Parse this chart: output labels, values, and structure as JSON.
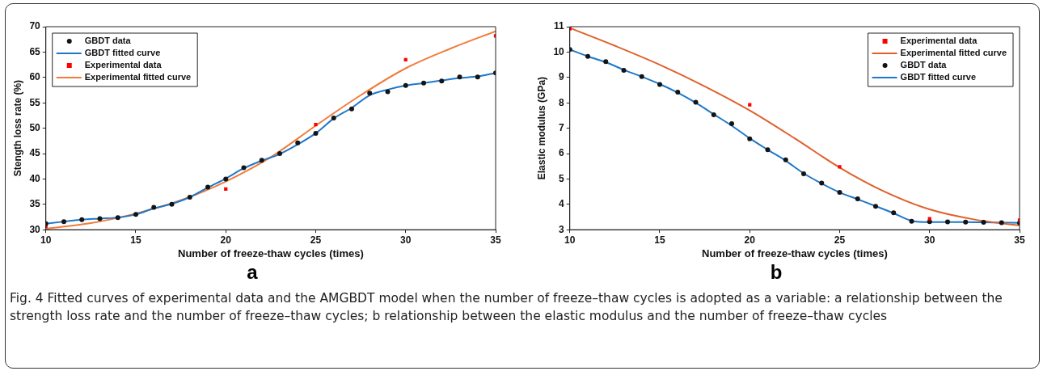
{
  "chart_data": [
    {
      "type": "line",
      "title": "a",
      "xlabel": "Number of freeze-thaw cycles (times)",
      "ylabel": "Stength loss rate (%)",
      "xlim": [
        10,
        35
      ],
      "xticks": [
        10,
        15,
        20,
        25,
        30,
        35
      ],
      "ylim": [
        30,
        70
      ],
      "yticks": [
        30,
        35,
        40,
        45,
        50,
        55,
        60,
        65,
        70
      ],
      "grid": false,
      "legend": "top left",
      "annotations": [
        "Fig. 4  Fitted curves of experimental data and the AMGBDT model when the number of freeze–thaw cycles is adopted as a variable: a relationship between the strength loss rate and the number of freeze–thaw cycles; b relationship between the elastic modulus and the number of freeze–thaw cycles"
      ],
      "series": [
        {
          "name": "GBDT data",
          "type": "scatter",
          "marker": "circle",
          "color": "#141414",
          "x": [
            10,
            11,
            12,
            13,
            14,
            15,
            16,
            17,
            18,
            19,
            20,
            21,
            22,
            23,
            24,
            25,
            26,
            27,
            28,
            29,
            30,
            31,
            32,
            33,
            34,
            35
          ],
          "values": [
            31.2,
            31.6,
            32.0,
            32.2,
            32.4,
            33.0,
            34.4,
            35.0,
            36.4,
            38.4,
            40.0,
            42.2,
            43.7,
            45.0,
            47.1,
            49.0,
            52.0,
            53.8,
            56.9,
            57.2,
            58.4,
            58.9,
            59.3,
            60.1,
            60.1,
            60.9
          ]
        },
        {
          "name": "GBDT fitted curve",
          "marker": "none",
          "line_style": "solid",
          "color": "#1f77c8",
          "x": [
            10,
            11,
            12,
            13,
            14,
            15,
            16,
            17,
            18,
            19,
            20,
            21,
            22,
            23,
            24,
            25,
            26,
            27,
            28,
            29,
            30,
            31,
            32,
            33,
            34,
            35
          ],
          "values": [
            31.2,
            31.6,
            32.0,
            32.2,
            32.4,
            33.0,
            34.2,
            35.1,
            36.4,
            38.3,
            40.1,
            42.1,
            43.6,
            44.9,
            46.8,
            49.0,
            51.9,
            54.0,
            56.5,
            57.6,
            58.4,
            58.9,
            59.4,
            59.9,
            60.2,
            60.9
          ]
        },
        {
          "name": "Experimental data",
          "type": "scatter",
          "marker": "square",
          "color": "#ff0000",
          "x": [
            10,
            20,
            25,
            30,
            35
          ],
          "values": [
            30.7,
            38.0,
            50.7,
            63.5,
            68.2
          ]
        },
        {
          "name": "Experimental fitted curve",
          "marker": "none",
          "line_style": "solid",
          "color": "#f07c3c",
          "x": [
            10,
            12.5,
            15,
            17.5,
            20,
            22.5,
            25,
            27.5,
            30,
            32.5,
            35
          ],
          "values": [
            30.2,
            31.3,
            33.2,
            35.8,
            39.5,
            44.3,
            50.5,
            56.5,
            61.8,
            65.7,
            69.1
          ]
        }
      ]
    },
    {
      "type": "line",
      "title": "b",
      "xlabel": "Number of freeze-thaw cycles (times)",
      "ylabel": "Elastic modulus (GPa)",
      "xlim": [
        10,
        35
      ],
      "xticks": [
        10,
        15,
        20,
        25,
        30,
        35
      ],
      "ylim": [
        3,
        11
      ],
      "yticks": [
        3,
        4,
        5,
        6,
        7,
        8,
        9,
        10,
        11
      ],
      "grid": false,
      "legend": "top right",
      "series": [
        {
          "name": "Experimental data",
          "type": "scatter",
          "marker": "square",
          "color": "#ff0000",
          "x": [
            10,
            20,
            25,
            30,
            35
          ],
          "values": [
            10.92,
            7.92,
            5.48,
            3.43,
            3.38
          ]
        },
        {
          "name": "Experimental fitted curve",
          "marker": "none",
          "line_style": "solid",
          "color": "#e0602c",
          "x": [
            10,
            12.5,
            15,
            17.5,
            20,
            22.5,
            25,
            27.5,
            30,
            32.5,
            35
          ],
          "values": [
            10.95,
            10.25,
            9.5,
            8.65,
            7.7,
            6.6,
            5.45,
            4.5,
            3.8,
            3.4,
            3.17
          ]
        },
        {
          "name": "GBDT data",
          "type": "scatter",
          "marker": "circle",
          "color": "#141414",
          "x": [
            10,
            11,
            12,
            13,
            14,
            15,
            16,
            17,
            18,
            19,
            20,
            21,
            22,
            23,
            24,
            25,
            26,
            27,
            28,
            29,
            30,
            31,
            32,
            33,
            34,
            35
          ],
          "values": [
            10.1,
            9.83,
            9.62,
            9.28,
            9.03,
            8.72,
            8.42,
            8.02,
            7.53,
            7.18,
            6.58,
            6.15,
            5.75,
            5.2,
            4.84,
            4.47,
            4.22,
            3.92,
            3.67,
            3.33,
            3.32,
            3.31,
            3.3,
            3.29,
            3.28,
            3.27
          ]
        },
        {
          "name": "GBDT fitted curve",
          "marker": "none",
          "line_style": "solid",
          "color": "#1f77c8",
          "x": [
            10,
            11,
            12,
            13,
            14,
            15,
            16,
            17,
            18,
            19,
            20,
            21,
            22,
            23,
            24,
            25,
            26,
            27,
            28,
            29,
            30,
            31,
            32,
            33,
            34,
            35
          ],
          "values": [
            10.1,
            9.83,
            9.6,
            9.3,
            9.03,
            8.74,
            8.4,
            8.0,
            7.55,
            7.1,
            6.6,
            6.15,
            5.72,
            5.22,
            4.82,
            4.47,
            4.2,
            3.93,
            3.65,
            3.35,
            3.3,
            3.3,
            3.3,
            3.29,
            3.28,
            3.27
          ]
        }
      ]
    }
  ]
}
